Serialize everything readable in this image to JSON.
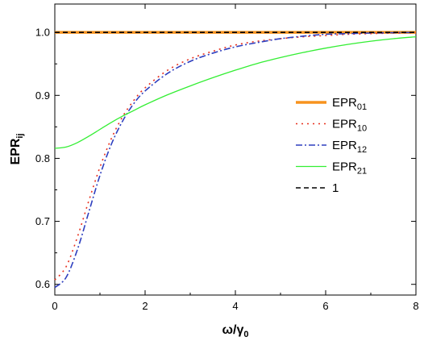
{
  "chart_data": {
    "type": "line",
    "title": "",
    "xlabel": "ω/γ",
    "xlabel_sub": "0",
    "ylabel": "EPR",
    "ylabel_sub": "ij",
    "xlim": [
      0,
      8
    ],
    "ylim": [
      0.583,
      1.045
    ],
    "x_ticks": [
      0,
      2,
      4,
      6,
      8
    ],
    "y_ticks": [
      0.6,
      0.7,
      0.8,
      0.9,
      1.0
    ],
    "x_tick_labels": [
      "0",
      "2",
      "4",
      "6",
      "8"
    ],
    "y_tick_labels": [
      "0.6",
      "0.7",
      "0.8",
      "0.9",
      "1.0"
    ],
    "grid": false,
    "legend_position": "right",
    "series": [
      {
        "name": "EPR",
        "name_sub": "01",
        "color": "#f7931e",
        "style": "thick-solid",
        "x": [
          0,
          8
        ],
        "y": [
          1.0,
          1.0
        ]
      },
      {
        "name": "EPR",
        "name_sub": "10",
        "color": "#e8301e",
        "style": "dotted",
        "x": [
          0,
          0.25,
          0.5,
          0.75,
          1.0,
          1.25,
          1.5,
          1.75,
          2.0,
          2.5,
          3.0,
          3.5,
          4.0,
          4.5,
          5.0,
          5.5,
          6.0,
          6.5,
          7.0,
          7.5,
          8.0
        ],
        "y": [
          0.607,
          0.628,
          0.675,
          0.732,
          0.786,
          0.831,
          0.866,
          0.892,
          0.912,
          0.94,
          0.958,
          0.97,
          0.98,
          0.986,
          0.99,
          0.993,
          0.995,
          0.997,
          0.998,
          0.999,
          0.9995
        ]
      },
      {
        "name": "EPR",
        "name_sub": "12",
        "color": "#2e3fbf",
        "style": "dash-dot",
        "x": [
          0,
          0.25,
          0.5,
          0.75,
          1.0,
          1.25,
          1.5,
          1.75,
          2.0,
          2.5,
          3.0,
          3.5,
          4.0,
          4.5,
          5.0,
          5.5,
          6.0,
          6.5,
          7.0,
          7.5,
          8.0
        ],
        "y": [
          0.595,
          0.611,
          0.655,
          0.714,
          0.773,
          0.822,
          0.859,
          0.887,
          0.907,
          0.935,
          0.954,
          0.967,
          0.977,
          0.984,
          0.99,
          0.994,
          0.997,
          0.998,
          0.999,
          0.9995,
          1.0
        ]
      },
      {
        "name": "EPR",
        "name_sub": "21",
        "color": "#33ee33",
        "style": "solid",
        "x": [
          0,
          0.25,
          0.5,
          0.75,
          1.0,
          1.25,
          1.5,
          1.75,
          2.0,
          2.5,
          3.0,
          3.5,
          4.0,
          4.5,
          5.0,
          5.5,
          6.0,
          6.5,
          7.0,
          7.5,
          8.0
        ],
        "y": [
          0.816,
          0.818,
          0.825,
          0.835,
          0.846,
          0.857,
          0.867,
          0.876,
          0.885,
          0.901,
          0.915,
          0.928,
          0.94,
          0.951,
          0.96,
          0.968,
          0.975,
          0.981,
          0.986,
          0.99,
          0.993
        ]
      },
      {
        "name": "1",
        "name_sub": "",
        "color": "#000000",
        "style": "dashed",
        "x": [
          0,
          8
        ],
        "y": [
          1.0,
          1.0
        ]
      }
    ]
  }
}
